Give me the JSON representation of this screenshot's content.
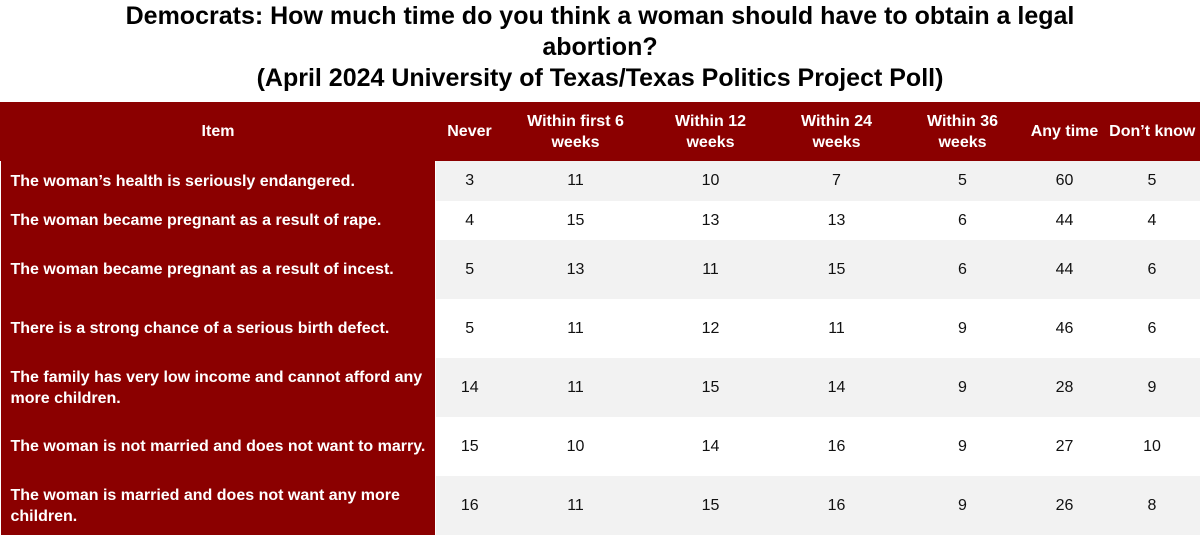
{
  "title": {
    "line1": "Democrats: How much time do you think a woman should have to obtain a legal",
    "line2": "abortion?",
    "line3": "(April 2024 University of Texas/Texas Politics Project Poll)"
  },
  "colors": {
    "header_bg": "#8b0000",
    "header_text": "#ffffff",
    "row_alt": "#f2f2f2"
  },
  "chart_data": {
    "type": "table",
    "title": "Democrats: How much time do you think a woman should have to obtain a legal abortion? (April 2024 University of Texas/Texas Politics Project Poll)",
    "columns": [
      "Item",
      "Never",
      "Within first 6 weeks",
      "Within 12 weeks",
      "Within 24 weeks",
      "Within 36 weeks",
      "Any time",
      "Don’t know"
    ],
    "rows": [
      {
        "item": "The woman’s health is seriously endangered.",
        "values": [
          3,
          11,
          10,
          7,
          5,
          60,
          5
        ]
      },
      {
        "item": "The woman became pregnant as a result of rape.",
        "values": [
          4,
          15,
          13,
          13,
          6,
          44,
          4
        ]
      },
      {
        "item": "The woman became pregnant as a result of incest.",
        "values": [
          5,
          13,
          11,
          15,
          6,
          44,
          6
        ]
      },
      {
        "item": "There is a strong chance of a serious birth defect.",
        "values": [
          5,
          11,
          12,
          11,
          9,
          46,
          6
        ]
      },
      {
        "item": "The family has very low income and cannot afford any more children.",
        "values": [
          14,
          11,
          15,
          14,
          9,
          28,
          9
        ]
      },
      {
        "item": "The woman is not married and does not want to marry.",
        "values": [
          15,
          10,
          14,
          16,
          9,
          27,
          10
        ]
      },
      {
        "item": "The woman is married and does not want any more children.",
        "values": [
          16,
          11,
          15,
          16,
          9,
          26,
          8
        ]
      }
    ]
  }
}
